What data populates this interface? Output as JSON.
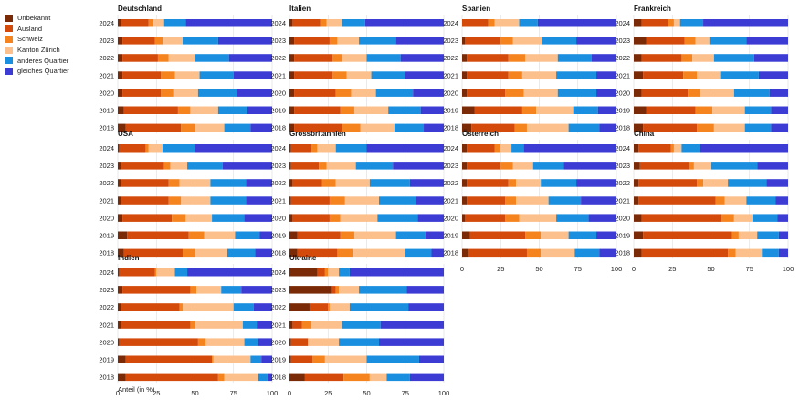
{
  "chart_data": {
    "type": "bar",
    "orientation": "horizontal",
    "stacked": true,
    "xlabel": "Anteil (in %)",
    "xlim": [
      0,
      100
    ],
    "x_ticks": [
      0,
      25,
      50,
      75,
      100
    ],
    "years": [
      "2024",
      "2023",
      "2022",
      "2021",
      "2020",
      "2019",
      "2018"
    ],
    "series_names": [
      "Unbekannt",
      "Ausland",
      "Schweiz",
      "Kanton Zürich",
      "anderes Quartier",
      "gleiches Quartier"
    ],
    "colors": [
      "#7a2a06",
      "#d44a0a",
      "#f5841f",
      "#fcc08d",
      "#1a8fe0",
      "#3c3cd4"
    ],
    "legend_position": "top-left",
    "panels": [
      {
        "title": "Deutschland",
        "values": [
          [
            2,
            18,
            3,
            7,
            14,
            56
          ],
          [
            3,
            21,
            5,
            13,
            23,
            35
          ],
          [
            3,
            23,
            7,
            17,
            22,
            28
          ],
          [
            3,
            25,
            9,
            16,
            22,
            25
          ],
          [
            3,
            25,
            8,
            16,
            25,
            23
          ],
          [
            4,
            35,
            8,
            18,
            19,
            16
          ],
          [
            5,
            36,
            9,
            19,
            17,
            14
          ]
        ]
      },
      {
        "title": "Italien",
        "values": [
          [
            2,
            18,
            4,
            10,
            15,
            51
          ],
          [
            3,
            23,
            5,
            14,
            24,
            31
          ],
          [
            3,
            25,
            6,
            16,
            22,
            28
          ],
          [
            3,
            25,
            9,
            16,
            22,
            25
          ],
          [
            3,
            27,
            10,
            16,
            24,
            20
          ],
          [
            3,
            30,
            9,
            22,
            21,
            15
          ],
          [
            3,
            31,
            12,
            22,
            19,
            13
          ]
        ]
      },
      {
        "title": "Spanien",
        "values": [
          [
            0,
            17,
            4,
            16,
            12,
            51
          ],
          [
            2,
            23,
            8,
            19,
            22,
            26
          ],
          [
            3,
            27,
            11,
            21,
            22,
            16
          ],
          [
            3,
            27,
            9,
            22,
            26,
            13
          ],
          [
            3,
            25,
            12,
            22,
            25,
            13
          ],
          [
            8,
            31,
            9,
            24,
            16,
            12
          ],
          [
            6,
            28,
            8,
            27,
            20,
            11
          ]
        ]
      },
      {
        "title": "Frankreich",
        "values": [
          [
            5,
            17,
            4,
            4,
            15,
            55
          ],
          [
            8,
            25,
            7,
            9,
            24,
            27
          ],
          [
            5,
            26,
            7,
            14,
            26,
            22
          ],
          [
            6,
            26,
            9,
            15,
            25,
            19
          ],
          [
            5,
            30,
            8,
            22,
            23,
            12
          ],
          [
            8,
            32,
            11,
            21,
            17,
            11
          ],
          [
            6,
            35,
            11,
            20,
            17,
            11
          ]
        ]
      },
      {
        "title": "USA",
        "values": [
          [
            1,
            17,
            2,
            9,
            21,
            50
          ],
          [
            2,
            28,
            4,
            11,
            23,
            32
          ],
          [
            2,
            31,
            7,
            20,
            23,
            17
          ],
          [
            2,
            31,
            8,
            19,
            23,
            17
          ],
          [
            3,
            32,
            9,
            17,
            21,
            18
          ],
          [
            6,
            40,
            10,
            20,
            16,
            8
          ],
          [
            4,
            38,
            8,
            21,
            18,
            11
          ]
        ]
      },
      {
        "title": "Grossbritannien",
        "values": [
          [
            1,
            13,
            4,
            12,
            20,
            50
          ],
          [
            1,
            18,
            5,
            19,
            24,
            33
          ],
          [
            2,
            19,
            9,
            22,
            26,
            22
          ],
          [
            1,
            25,
            10,
            22,
            24,
            18
          ],
          [
            2,
            24,
            7,
            24,
            26,
            17
          ],
          [
            5,
            28,
            9,
            27,
            19,
            12
          ],
          [
            5,
            26,
            10,
            34,
            17,
            8
          ]
        ]
      },
      {
        "title": "Österreich",
        "values": [
          [
            3,
            18,
            4,
            7,
            8,
            60
          ],
          [
            3,
            22,
            8,
            13,
            20,
            34
          ],
          [
            3,
            27,
            5,
            16,
            23,
            26
          ],
          [
            3,
            25,
            7,
            21,
            21,
            23
          ],
          [
            2,
            26,
            9,
            24,
            21,
            18
          ],
          [
            5,
            36,
            10,
            18,
            18,
            13
          ],
          [
            4,
            38,
            9,
            22,
            16,
            11
          ]
        ]
      },
      {
        "title": "China",
        "values": [
          [
            3,
            21,
            2,
            5,
            12,
            57
          ],
          [
            4,
            32,
            3,
            11,
            30,
            20
          ],
          [
            3,
            38,
            4,
            16,
            25,
            14
          ],
          [
            3,
            50,
            6,
            14,
            19,
            8
          ],
          [
            5,
            52,
            8,
            12,
            16,
            7
          ],
          [
            6,
            57,
            5,
            12,
            14,
            6
          ],
          [
            5,
            56,
            5,
            17,
            11,
            6
          ]
        ]
      },
      {
        "title": "Indien",
        "values": [
          [
            1,
            23,
            1,
            12,
            8,
            55
          ],
          [
            3,
            44,
            4,
            16,
            13,
            20
          ],
          [
            2,
            38,
            2,
            33,
            13,
            12
          ],
          [
            2,
            45,
            3,
            31,
            9,
            10
          ],
          [
            1,
            51,
            5,
            25,
            9,
            9
          ],
          [
            5,
            56,
            1,
            24,
            7,
            7
          ],
          [
            5,
            60,
            4,
            22,
            6,
            3
          ]
        ]
      },
      {
        "title": "Ukraine",
        "values": [
          [
            18,
            5,
            2,
            7,
            7,
            61
          ],
          [
            27,
            3,
            2,
            13,
            31,
            24
          ],
          [
            13,
            12,
            1,
            13,
            38,
            23
          ],
          [
            2,
            6,
            6,
            20,
            25,
            41
          ],
          [
            1,
            11,
            0,
            20,
            26,
            42
          ],
          [
            1,
            14,
            8,
            27,
            34,
            16
          ],
          [
            10,
            25,
            17,
            11,
            15,
            22
          ]
        ]
      }
    ]
  }
}
